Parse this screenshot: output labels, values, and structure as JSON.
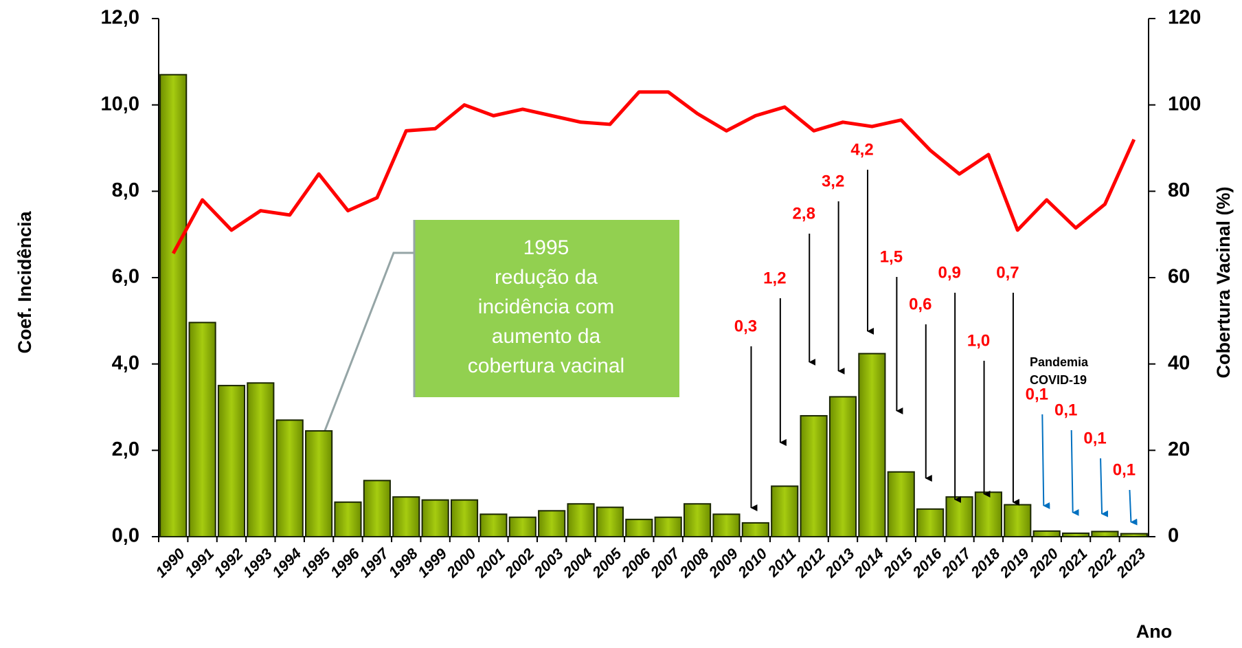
{
  "chart_data": {
    "type": "bar",
    "categories": [
      "1990",
      "1991",
      "1992",
      "1993",
      "1994",
      "1995",
      "1996",
      "1997",
      "1998",
      "1999",
      "2000",
      "2001",
      "2002",
      "2003",
      "2004",
      "2005",
      "2006",
      "2007",
      "2008",
      "2009",
      "2010",
      "2011",
      "2012",
      "2013",
      "2014",
      "2015",
      "2016",
      "2017",
      "2018",
      "2019",
      "2020",
      "2021",
      "2022",
      "2023"
    ],
    "series": [
      {
        "name": "Coef. Incidência",
        "type": "bar",
        "color": "#8db600",
        "values": [
          10.7,
          4.96,
          3.5,
          3.56,
          2.7,
          2.45,
          0.8,
          1.3,
          0.92,
          0.85,
          0.85,
          0.52,
          0.45,
          0.6,
          0.76,
          0.68,
          0.4,
          0.45,
          0.76,
          0.52,
          0.32,
          1.17,
          2.8,
          3.24,
          4.24,
          1.5,
          0.64,
          0.92,
          1.03,
          0.74,
          0.13,
          0.08,
          0.12,
          0.07
        ],
        "value_labels": [
          null,
          null,
          null,
          null,
          null,
          null,
          null,
          null,
          null,
          null,
          null,
          null,
          null,
          null,
          null,
          null,
          null,
          null,
          null,
          null,
          "0,3",
          "1,2",
          "2,8",
          "3,2",
          "4,2",
          "1,5",
          "0,6",
          "0,9",
          "1,0",
          "0,7",
          "0,1",
          "0,1",
          "0,1",
          "0,1"
        ]
      },
      {
        "name": "Cobertura Vacinal (%)",
        "type": "line",
        "axis": "y2",
        "color": "#ff0000",
        "values": [
          65.6,
          78,
          71,
          75.5,
          74.5,
          84,
          75.5,
          78.5,
          94,
          94.5,
          100,
          97.5,
          99,
          97.5,
          96,
          95.5,
          103,
          103,
          98,
          94,
          97.5,
          99.5,
          94,
          96,
          95,
          96.5,
          89.5,
          84,
          88.5,
          71,
          78,
          71.5,
          77,
          92
        ]
      }
    ],
    "ylabel": "Coef. Incidência",
    "y2label": "Cobertura Vacinal (%)",
    "xlabel": "Ano",
    "ylim": [
      0,
      12
    ],
    "yticks": [
      {
        "value": 0,
        "label": "0,0"
      },
      {
        "value": 2,
        "label": "2,0"
      },
      {
        "value": 4,
        "label": "4,0"
      },
      {
        "value": 6,
        "label": "6,0"
      },
      {
        "value": 8,
        "label": "8,0"
      },
      {
        "value": 10,
        "label": "10,0"
      },
      {
        "value": 12,
        "label": "12,0"
      }
    ],
    "y2lim": [
      0,
      120
    ],
    "y2ticks": [
      0,
      20,
      40,
      60,
      80,
      100,
      120
    ],
    "annotation_box": [
      "1995",
      "redução da",
      "incidência com",
      "aumento da",
      "cobertura vacinal"
    ],
    "annotation_pandemic": [
      "Pandemia",
      "COVID-19"
    ]
  }
}
